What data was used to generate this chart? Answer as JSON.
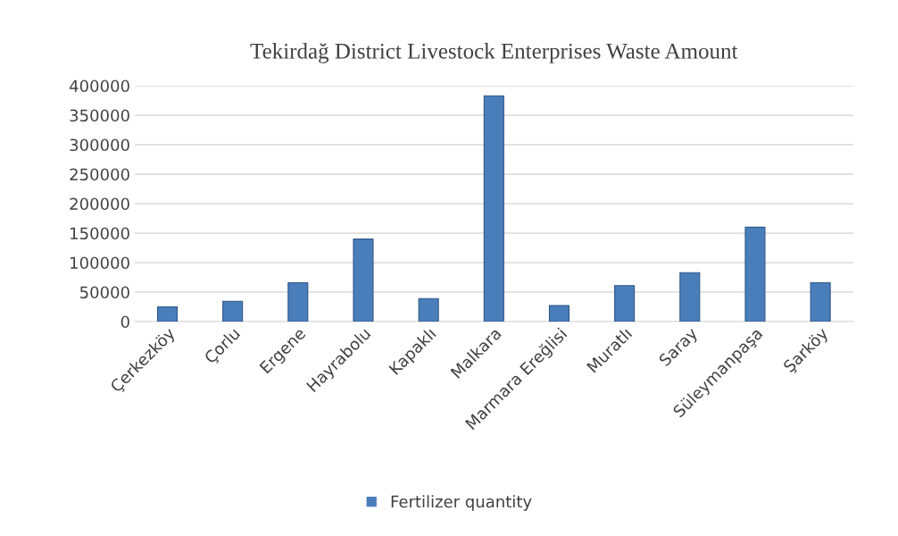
{
  "chart_data": {
    "type": "bar",
    "title": "Tekirdağ District Livestock Enterprises Waste Amount",
    "categories": [
      "Çerkezköy",
      "Çorlu",
      "Ergene",
      "Hayrabolu",
      "Kapaklı",
      "Malkara",
      "Marmara Ereğlisi",
      "Muratlı",
      "Saray",
      "Süleymanpaşa",
      "Şarköy"
    ],
    "series": [
      {
        "name": "Fertilizer quantity",
        "color": "#4a7ebb",
        "values": [
          25000,
          34500,
          66000,
          140000,
          39000,
          383000,
          27000,
          61000,
          83000,
          160000,
          66000
        ]
      }
    ],
    "ylim": [
      0,
      400000
    ],
    "yticks": [
      0,
      50000,
      100000,
      150000,
      200000,
      250000,
      300000,
      350000,
      400000
    ],
    "grid": "y",
    "legend": "bottom"
  }
}
